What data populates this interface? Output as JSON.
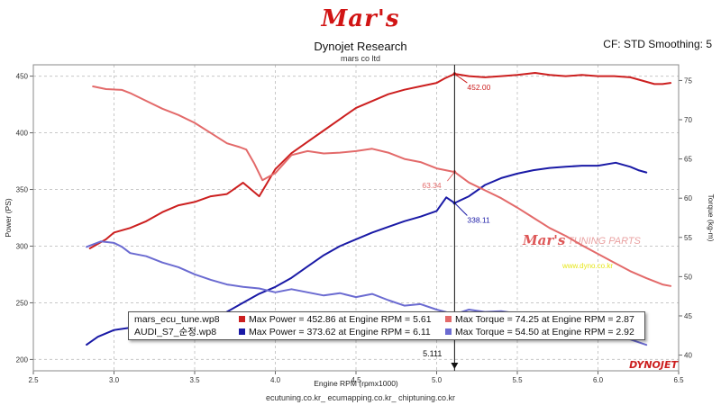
{
  "brand": "Mar's",
  "header": {
    "title": "Dynojet Research",
    "subtitle": "mars co ltd",
    "settings": "CF: STD Smoothing: 5"
  },
  "footer": "ecutuning.co.kr_ ecumapping.co.kr_ chiptuning.co.kr",
  "watermark": {
    "brand": "Mar's",
    "text": "TUNING PARTS",
    "url": "www.dyno.co.kr"
  },
  "logo": "DYNOJET",
  "cursor": {
    "label": "5.111",
    "rpm": 5.111
  },
  "legend": {
    "rows": [
      {
        "file": "mars_ecu_tune.wp8",
        "power": "Max Power = 452.86 at Engine RPM = 5.61",
        "torque": "Max Torque = 74.25 at Engine RPM = 2.87"
      },
      {
        "file": "AUDI_S7_순정.wp8",
        "power": "Max Power = 373.62 at Engine RPM = 6.11",
        "torque": "Max Torque = 54.50 at Engine RPM = 2.92"
      }
    ]
  },
  "chart_data": {
    "type": "line",
    "xlabel": "Engine RPM (rpmx1000)",
    "ylabel": "Power (PS)",
    "y2label": "Torque (kg-m)",
    "xlim": [
      2.5,
      6.5
    ],
    "ylim": [
      190,
      460
    ],
    "y2lim": [
      38,
      77
    ],
    "xticks": [
      "2.5",
      "3.0",
      "3.5",
      "4.0",
      "4.5",
      "5.0",
      "5.5",
      "6.0",
      "6.5"
    ],
    "yticks": [
      "200",
      "250",
      "300",
      "350",
      "400",
      "450"
    ],
    "y2ticks": [
      "40",
      "45",
      "50",
      "55",
      "60",
      "65",
      "70",
      "75"
    ],
    "grid": true,
    "annotations": [
      {
        "text": "452.00",
        "x": 5.111,
        "y": 452.0,
        "axis": "left",
        "color": "#cc1f1f"
      },
      {
        "text": "63.34",
        "x": 5.111,
        "y": 63.34,
        "axis": "right",
        "color": "#e36a6a"
      },
      {
        "text": "338.11",
        "x": 5.111,
        "y": 338.11,
        "axis": "left",
        "color": "#1a1aa6"
      }
    ],
    "series": [
      {
        "name": "mars_ecu_tune.wp8 Power",
        "axis": "left",
        "color": "#cc1f1f",
        "points": [
          [
            2.85,
            298
          ],
          [
            2.95,
            306
          ],
          [
            3.0,
            312
          ],
          [
            3.1,
            316
          ],
          [
            3.2,
            322
          ],
          [
            3.3,
            330
          ],
          [
            3.4,
            336
          ],
          [
            3.5,
            339
          ],
          [
            3.6,
            344
          ],
          [
            3.7,
            346
          ],
          [
            3.75,
            351
          ],
          [
            3.8,
            356
          ],
          [
            3.85,
            350
          ],
          [
            3.9,
            344
          ],
          [
            3.95,
            356
          ],
          [
            4.0,
            368
          ],
          [
            4.1,
            382
          ],
          [
            4.2,
            392
          ],
          [
            4.3,
            402
          ],
          [
            4.4,
            412
          ],
          [
            4.5,
            422
          ],
          [
            4.6,
            428
          ],
          [
            4.7,
            434
          ],
          [
            4.8,
            438
          ],
          [
            4.9,
            441
          ],
          [
            5.0,
            444
          ],
          [
            5.05,
            448
          ],
          [
            5.111,
            452
          ],
          [
            5.2,
            450
          ],
          [
            5.3,
            449
          ],
          [
            5.4,
            450
          ],
          [
            5.5,
            451
          ],
          [
            5.61,
            452.86
          ],
          [
            5.7,
            451
          ],
          [
            5.8,
            450
          ],
          [
            5.9,
            451
          ],
          [
            6.0,
            450
          ],
          [
            6.1,
            450
          ],
          [
            6.2,
            449
          ],
          [
            6.25,
            447
          ],
          [
            6.3,
            445
          ],
          [
            6.35,
            443
          ],
          [
            6.4,
            443
          ],
          [
            6.45,
            444
          ]
        ]
      },
      {
        "name": "AUDI_S7_순정.wp8 Power",
        "axis": "left",
        "color": "#1a1aa6",
        "points": [
          [
            2.83,
            213
          ],
          [
            2.9,
            220
          ],
          [
            3.0,
            226
          ],
          [
            3.1,
            228
          ],
          [
            3.2,
            230
          ],
          [
            3.3,
            226
          ],
          [
            3.4,
            224
          ],
          [
            3.5,
            228
          ],
          [
            3.6,
            234
          ],
          [
            3.7,
            242
          ],
          [
            3.8,
            250
          ],
          [
            3.9,
            258
          ],
          [
            4.0,
            264
          ],
          [
            4.1,
            272
          ],
          [
            4.2,
            282
          ],
          [
            4.3,
            292
          ],
          [
            4.4,
            300
          ],
          [
            4.5,
            306
          ],
          [
            4.6,
            312
          ],
          [
            4.7,
            317
          ],
          [
            4.8,
            322
          ],
          [
            4.9,
            326
          ],
          [
            5.0,
            331
          ],
          [
            5.06,
            343
          ],
          [
            5.111,
            338
          ],
          [
            5.2,
            344
          ],
          [
            5.3,
            354
          ],
          [
            5.4,
            360
          ],
          [
            5.5,
            364
          ],
          [
            5.6,
            367
          ],
          [
            5.7,
            369
          ],
          [
            5.8,
            370
          ],
          [
            5.9,
            371
          ],
          [
            6.0,
            371
          ],
          [
            6.11,
            373.62
          ],
          [
            6.2,
            370
          ],
          [
            6.25,
            367
          ],
          [
            6.3,
            365
          ]
        ]
      },
      {
        "name": "mars_ecu_tune.wp8 Torque",
        "axis": "right",
        "color": "#e36a6a",
        "points": [
          [
            2.87,
            74.25
          ],
          [
            2.95,
            73.9
          ],
          [
            3.05,
            73.8
          ],
          [
            3.1,
            73.4
          ],
          [
            3.2,
            72.4
          ],
          [
            3.3,
            71.4
          ],
          [
            3.4,
            70.6
          ],
          [
            3.5,
            69.6
          ],
          [
            3.6,
            68.3
          ],
          [
            3.7,
            67.0
          ],
          [
            3.78,
            66.5
          ],
          [
            3.82,
            66.2
          ],
          [
            3.87,
            64.4
          ],
          [
            3.92,
            62.3
          ],
          [
            4.0,
            63.2
          ],
          [
            4.1,
            65.5
          ],
          [
            4.2,
            66.0
          ],
          [
            4.3,
            65.7
          ],
          [
            4.4,
            65.8
          ],
          [
            4.5,
            66.0
          ],
          [
            4.6,
            66.3
          ],
          [
            4.7,
            65.8
          ],
          [
            4.8,
            65.0
          ],
          [
            4.9,
            64.6
          ],
          [
            5.0,
            63.8
          ],
          [
            5.111,
            63.34
          ],
          [
            5.2,
            62.0
          ],
          [
            5.3,
            61.0
          ],
          [
            5.4,
            60.0
          ],
          [
            5.5,
            58.8
          ],
          [
            5.6,
            57.5
          ],
          [
            5.7,
            56.2
          ],
          [
            5.8,
            55.2
          ],
          [
            5.9,
            54.0
          ],
          [
            6.0,
            52.9
          ],
          [
            6.1,
            51.8
          ],
          [
            6.2,
            50.7
          ],
          [
            6.3,
            49.8
          ],
          [
            6.4,
            49.0
          ],
          [
            6.45,
            48.8
          ]
        ]
      },
      {
        "name": "AUDI_S7_순정.wp8 Torque",
        "axis": "right",
        "color": "#6b6bd1",
        "points": [
          [
            2.83,
            53.8
          ],
          [
            2.92,
            54.5
          ],
          [
            3.0,
            54.3
          ],
          [
            3.05,
            53.8
          ],
          [
            3.1,
            53.0
          ],
          [
            3.2,
            52.6
          ],
          [
            3.3,
            51.8
          ],
          [
            3.4,
            51.2
          ],
          [
            3.5,
            50.3
          ],
          [
            3.6,
            49.6
          ],
          [
            3.7,
            49.0
          ],
          [
            3.8,
            48.7
          ],
          [
            3.9,
            48.5
          ],
          [
            4.0,
            48.0
          ],
          [
            4.1,
            48.4
          ],
          [
            4.2,
            48.0
          ],
          [
            4.3,
            47.6
          ],
          [
            4.4,
            47.9
          ],
          [
            4.5,
            47.4
          ],
          [
            4.6,
            47.8
          ],
          [
            4.7,
            47.0
          ],
          [
            4.8,
            46.3
          ],
          [
            4.9,
            46.5
          ],
          [
            5.0,
            45.8
          ],
          [
            5.111,
            45.2
          ],
          [
            5.2,
            45.8
          ],
          [
            5.3,
            45.5
          ],
          [
            5.4,
            45.6
          ],
          [
            5.5,
            45.3
          ],
          [
            5.6,
            44.8
          ],
          [
            5.7,
            44.0
          ],
          [
            5.8,
            43.3
          ],
          [
            5.9,
            42.8
          ],
          [
            6.0,
            42.6
          ],
          [
            6.1,
            42.4
          ],
          [
            6.2,
            42.0
          ],
          [
            6.3,
            41.3
          ]
        ]
      }
    ]
  }
}
